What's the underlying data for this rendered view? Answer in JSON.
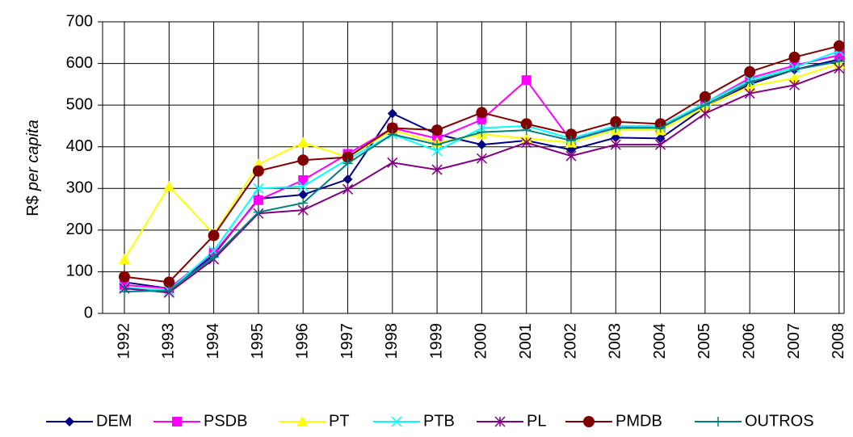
{
  "chart_data": {
    "type": "line",
    "y_label": {
      "text": "R$",
      "emphasis": "per capita"
    },
    "categories": [
      "1992",
      "1993",
      "1994",
      "1995",
      "1996",
      "1997",
      "1998",
      "1999",
      "2000",
      "2001",
      "2002",
      "2003",
      "2004",
      "2005",
      "2006",
      "2007",
      "2008"
    ],
    "ylim": [
      0,
      700
    ],
    "yticks": [
      0,
      100,
      200,
      300,
      400,
      500,
      600,
      700
    ],
    "grid": true,
    "legend": "bottom",
    "series": [
      {
        "name": "DEM",
        "color": "#000080",
        "marker": "diamond",
        "values": [
          75,
          60,
          140,
          275,
          285,
          322,
          480,
          430,
          405,
          415,
          393,
          422,
          420,
          495,
          550,
          585,
          610
        ]
      },
      {
        "name": "PSDB",
        "color": "#ff00ff",
        "marker": "square",
        "values": [
          68,
          60,
          145,
          272,
          320,
          383,
          445,
          420,
          465,
          560,
          415,
          450,
          445,
          505,
          565,
          595,
          620
        ]
      },
      {
        "name": "PT",
        "color": "#ffff00",
        "marker": "triangle",
        "values": [
          130,
          305,
          190,
          358,
          410,
          375,
          440,
          410,
          430,
          420,
          410,
          440,
          440,
          495,
          545,
          565,
          600
        ]
      },
      {
        "name": "PTB",
        "color": "#00ffff",
        "marker": "x",
        "values": [
          62,
          55,
          150,
          300,
          305,
          370,
          430,
          390,
          445,
          450,
          420,
          450,
          450,
          505,
          560,
          590,
          630
        ]
      },
      {
        "name": "PL",
        "color": "#800080",
        "marker": "star",
        "values": [
          60,
          50,
          130,
          240,
          248,
          298,
          362,
          345,
          372,
          410,
          378,
          405,
          405,
          480,
          528,
          548,
          588
        ]
      },
      {
        "name": "PMDB",
        "color": "#800000",
        "marker": "circle",
        "values": [
          88,
          75,
          187,
          342,
          368,
          375,
          445,
          440,
          482,
          455,
          430,
          460,
          455,
          520,
          580,
          615,
          642
        ]
      },
      {
        "name": "OUTROS",
        "color": "#008080",
        "marker": "plus",
        "values": [
          52,
          55,
          135,
          243,
          265,
          360,
          430,
          405,
          435,
          440,
          415,
          445,
          445,
          500,
          555,
          585,
          605
        ]
      }
    ]
  }
}
